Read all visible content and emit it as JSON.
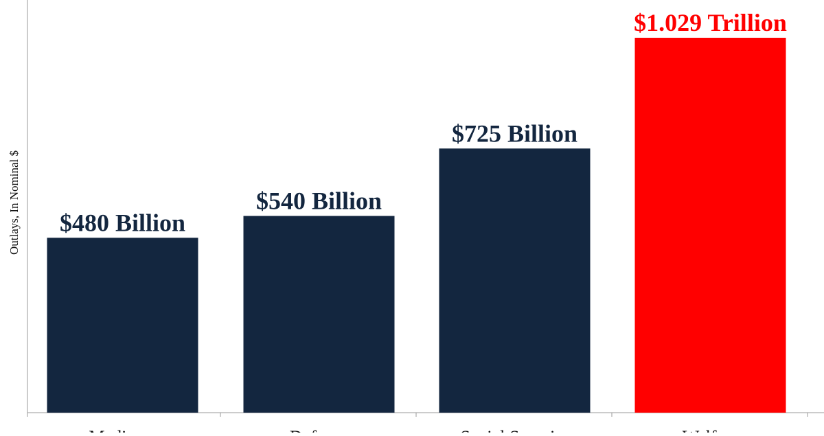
{
  "chart_data": {
    "type": "bar",
    "title": "",
    "xlabel": "",
    "ylabel": "Outlays, In Nominal $",
    "categories": [
      "Medicare",
      "Defense",
      "Social Security",
      "Welfare"
    ],
    "values": [
      480,
      540,
      725,
      1029
    ],
    "value_unit": "Billion $",
    "data_labels": [
      "$480 Billion",
      "$540 Billion",
      "$725 Billion",
      "$1.029 Trillion"
    ],
    "bar_colors": [
      "#13263f",
      "#13263f",
      "#13263f",
      "#ff0000"
    ],
    "label_colors": [
      "#13263f",
      "#13263f",
      "#13263f",
      "#ff0000"
    ],
    "ylim": [
      0,
      1029
    ],
    "grid": false,
    "legend": "none"
  },
  "colors": {
    "primary_bar": "#13263f",
    "highlight_bar": "#ff0000",
    "axis_line": "#999999"
  }
}
